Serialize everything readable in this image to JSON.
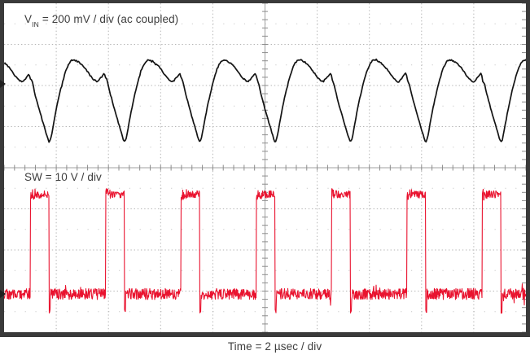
{
  "figure": {
    "background": "#ffffff",
    "border_color": "#3a3a3a",
    "grid_line_color": "#b4b4b4",
    "grid_dot_color": "#c9c9c9",
    "axis_line_color": "#a2a2a2",
    "tick_color": "#8c8c8c",
    "text_color": "#3d3d3d",
    "marker_color": "#1f1f1f"
  },
  "labels": {
    "ch1_prefix": "V",
    "ch1_sub": "IN",
    "ch1_rest": " = 200 mV / div (ac coupled)",
    "ch2": "SW = 10 V / div",
    "time": "Time = 2 µsec / div"
  },
  "chart_data": {
    "type": "line",
    "title": "",
    "xlabel": "Time = 2 µsec / div",
    "x_divisions": 10,
    "y_divisions": 8,
    "time_per_div_us": 2,
    "grid": "dotted",
    "series": [
      {
        "name": "VIN",
        "label": "VIN = 200 mV / div (ac coupled)",
        "color": "#141414",
        "units": "mV",
        "mv_per_div": 200,
        "ground_div_from_top": 1.96,
        "period_us": 2.886,
        "first_edge_us": 1.0,
        "noise_mv": 3,
        "cycle_points_us_mv": [
          [
            0.0,
            59
          ],
          [
            0.02,
            -43
          ],
          [
            0.045,
            32
          ],
          [
            0.2,
            -59
          ],
          [
            0.4,
            -148
          ],
          [
            0.6,
            -235
          ],
          [
            0.73,
            -290
          ],
          [
            0.8,
            -265
          ],
          [
            0.9,
            -192
          ],
          [
            1.05,
            -92
          ],
          [
            1.2,
            -10
          ],
          [
            1.38,
            70
          ],
          [
            1.5,
            102
          ],
          [
            1.6,
            117
          ],
          [
            1.72,
            116
          ],
          [
            1.85,
            106
          ],
          [
            2.0,
            92
          ],
          [
            2.15,
            68
          ],
          [
            2.35,
            31
          ],
          [
            2.57,
            8
          ],
          [
            2.72,
            30
          ],
          [
            2.886,
            59
          ]
        ]
      },
      {
        "name": "SW",
        "label": "SW = 10 V / div",
        "color": "#e9132f",
        "units": "V",
        "v_per_div": 10,
        "ground_div_from_top": 7.07,
        "period_us": 2.886,
        "first_edge_us": 1.0,
        "on_time_us": 0.717,
        "high_v": 24.2,
        "low_v": 0,
        "undershoot_v": -4.3,
        "undershoot_dur_us": 0.06,
        "noise_high_v": 0.9,
        "noise_high_start_v": 1.4,
        "noise_low_v": 1.35
      }
    ]
  }
}
